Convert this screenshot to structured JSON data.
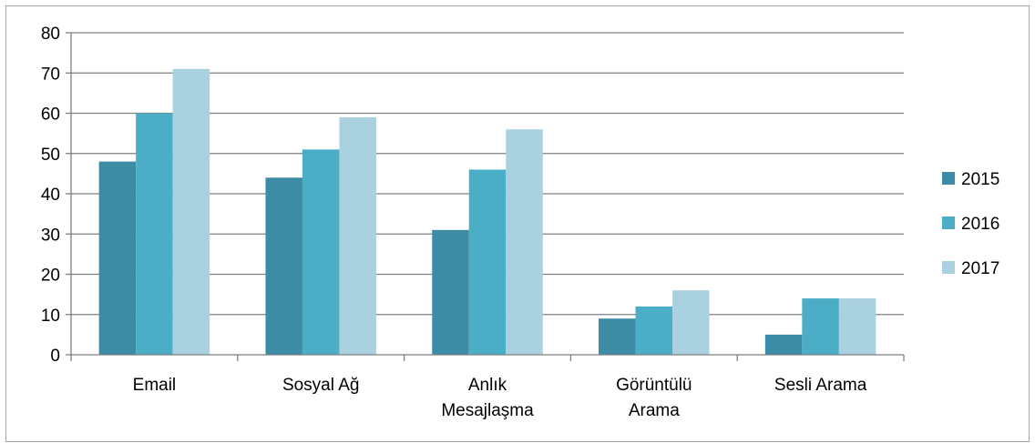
{
  "chart_data": {
    "type": "bar",
    "title": "",
    "xlabel": "",
    "ylabel": "",
    "categories": [
      [
        "Email"
      ],
      [
        "Sosyal Ağ"
      ],
      [
        "Anlık",
        "Mesajlaşma"
      ],
      [
        "Görüntülü",
        "Arama"
      ],
      [
        "Sesli Arama"
      ]
    ],
    "series": [
      {
        "name": "2015",
        "color": "#3d8ca6",
        "values": [
          48,
          44,
          31,
          9,
          5
        ]
      },
      {
        "name": "2016",
        "color": "#4badc6",
        "values": [
          60,
          51,
          46,
          12,
          14
        ]
      },
      {
        "name": "2017",
        "color": "#a9d1df",
        "values": [
          71,
          59,
          56,
          16,
          14
        ]
      }
    ],
    "ylim": [
      0,
      80
    ],
    "yticks": [
      0,
      10,
      20,
      30,
      40,
      50,
      60,
      70,
      80
    ],
    "grid": true,
    "legend_position": "right"
  }
}
